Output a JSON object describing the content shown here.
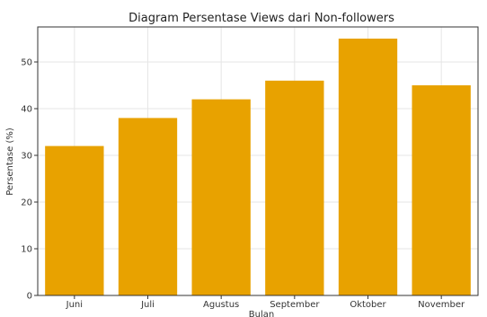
{
  "chart_data": {
    "type": "bar",
    "title": "Diagram Persentase Views dari Non-followers",
    "xlabel": "Bulan",
    "ylabel": "Persentase (%)",
    "categories": [
      "Juni",
      "Juli",
      "Agustus",
      "September",
      "Oktober",
      "November"
    ],
    "values": [
      32,
      38,
      42,
      46,
      55,
      45
    ],
    "ylim": [
      0,
      57.5
    ],
    "yticks": [
      0,
      10,
      20,
      30,
      40,
      50
    ],
    "grid": true,
    "bar_color": "#E8A200"
  }
}
